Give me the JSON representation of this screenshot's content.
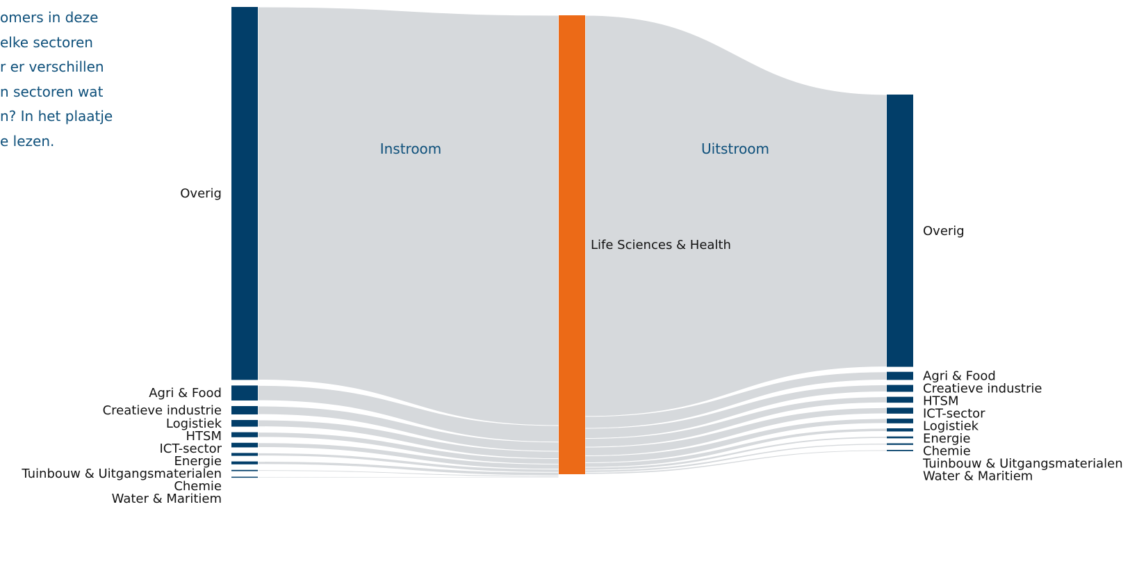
{
  "intro_lines": [
    "omers in deze",
    "elke sectoren",
    "r er verschillen",
    "n sectoren wat",
    "n? In het plaatje",
    "e lezen."
  ],
  "section_titles": {
    "instroom": "Instroom",
    "uitstroom": "Uitstroom"
  },
  "center_node": {
    "label": "Life Sciences & Health",
    "color": "#ec6a17"
  },
  "colors": {
    "node": "#023e69",
    "link": "#d6d9dc",
    "center": "#ec6a17"
  },
  "chart_data": {
    "type": "sankey",
    "center": "Life Sciences & Health",
    "inflow": [
      {
        "sector": "Overig",
        "share": 89.4
      },
      {
        "sector": "Agri & Food",
        "share": 3.6
      },
      {
        "sector": "Creatieve industrie",
        "share": 2.0
      },
      {
        "sector": "Logistiek",
        "share": 1.6
      },
      {
        "sector": "HTSM",
        "share": 1.2
      },
      {
        "sector": "ICT-sector",
        "share": 1.1
      },
      {
        "sector": "Energie",
        "share": 0.7
      },
      {
        "sector": "Tuinbouw & Uitgangsmaterialen",
        "share": 0.7
      },
      {
        "sector": "Chemie",
        "share": 0.3
      },
      {
        "sector": "Water & Maritiem",
        "share": 0.2
      }
    ],
    "outflow": [
      {
        "sector": "Overig",
        "share": 87.4
      },
      {
        "sector": "Agri & Food",
        "share": 2.6
      },
      {
        "sector": "Creatieve industrie",
        "share": 2.2
      },
      {
        "sector": "HTSM",
        "share": 1.9
      },
      {
        "sector": "ICT-sector",
        "share": 1.9
      },
      {
        "sector": "Logistiek",
        "share": 1.5
      },
      {
        "sector": "Energie",
        "share": 1.0
      },
      {
        "sector": "Chemie",
        "share": 0.6
      },
      {
        "sector": "Tuinbouw & Uitgangsmaterialen",
        "share": 0.5
      },
      {
        "sector": "Water & Maritiem",
        "share": 0.4
      }
    ]
  }
}
